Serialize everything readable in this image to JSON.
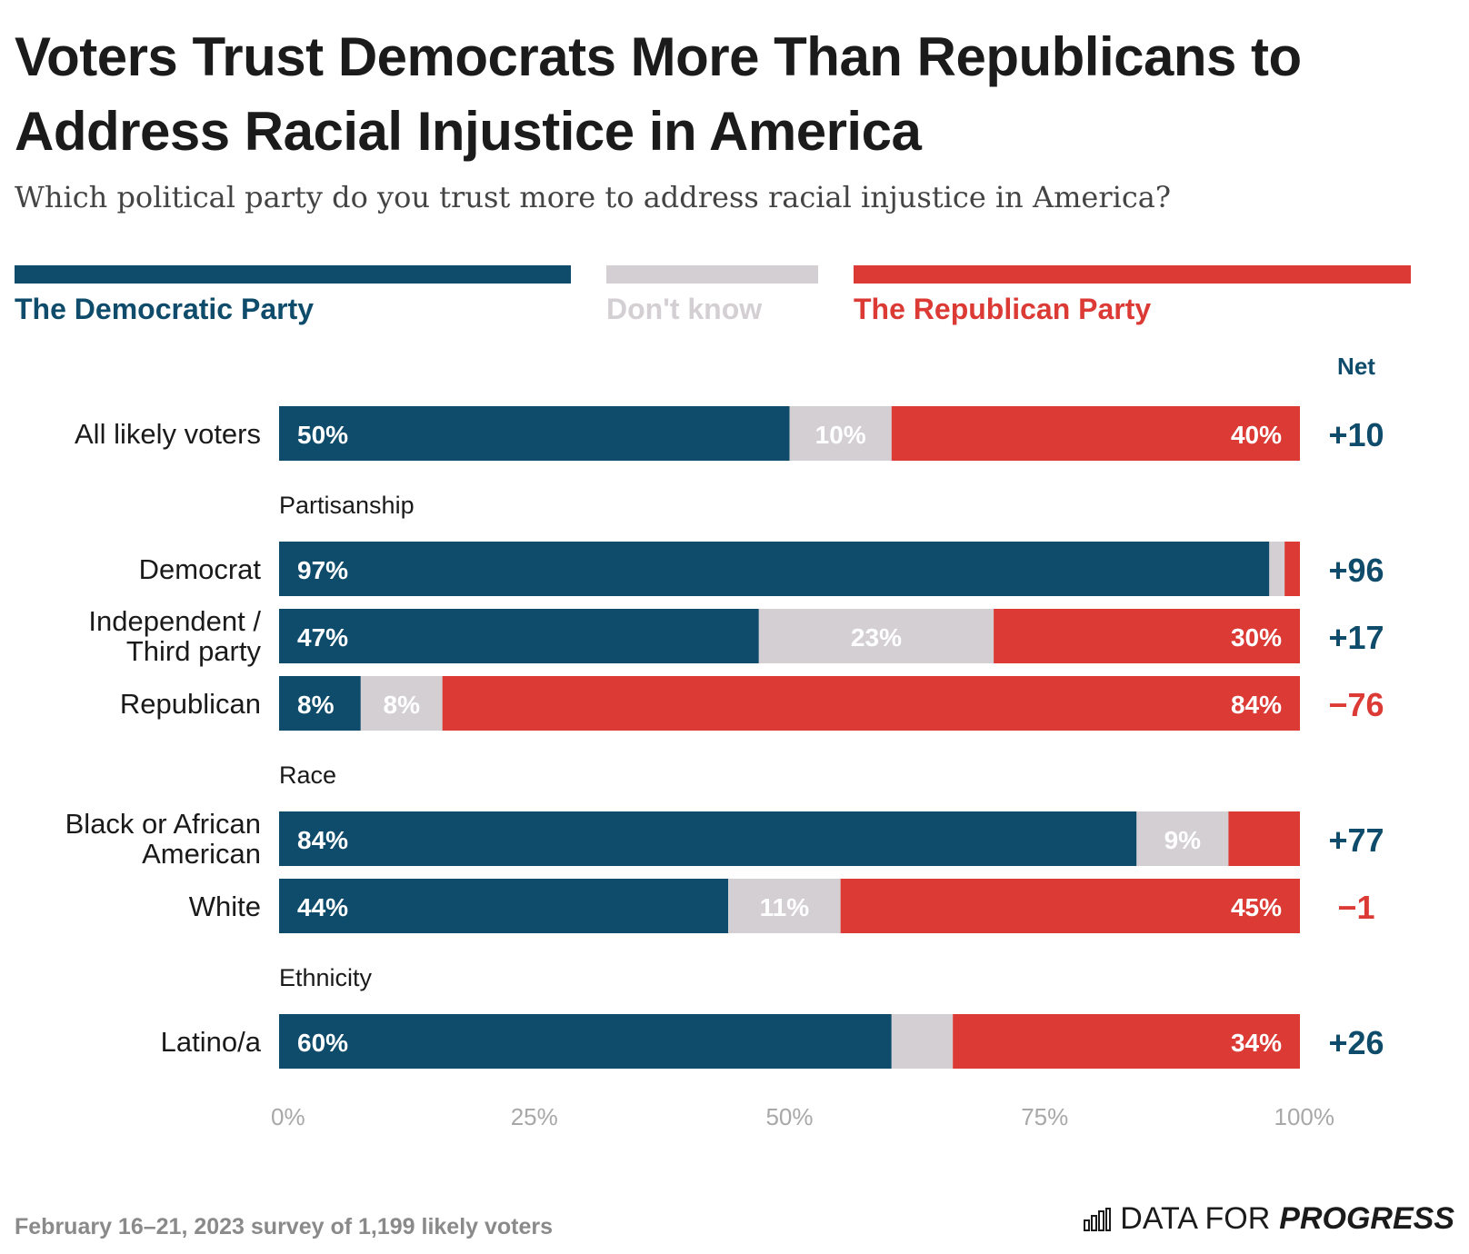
{
  "title": "Voters Trust Democrats More Than Republicans to Address Racial Injustice in America",
  "subtitle": "Which political party do you trust more to address racial injustice in America?",
  "legend": [
    {
      "label": "The Democratic Party",
      "color": "#0f4c6b"
    },
    {
      "label": "Don't know",
      "color": "#d3cfd3"
    },
    {
      "label": "The Republican Party",
      "color": "#db3a35"
    }
  ],
  "net_header": "Net",
  "footer": "February 16–21, 2023 survey of 1,199 likely voters",
  "brand": {
    "prefix": "DATA FOR",
    "strong": "PROGRESS"
  },
  "chart_data": {
    "type": "bar",
    "orientation": "horizontal-stacked-100",
    "series": [
      {
        "name": "The Democratic Party",
        "color": "#0f4c6b"
      },
      {
        "name": "Don't know",
        "color": "#d3cfd3"
      },
      {
        "name": "The Republican Party",
        "color": "#db3a35"
      }
    ],
    "groups": [
      {
        "label": "",
        "rows": [
          {
            "category": "All likely voters",
            "values": [
              50,
              10,
              40
            ],
            "labels": [
              "50%",
              "10%",
              "40%"
            ],
            "net": "+10"
          }
        ]
      },
      {
        "label": "Partisanship",
        "rows": [
          {
            "category": "Democrat",
            "values": [
              97,
              1.5,
              1.5
            ],
            "labels": [
              "97%",
              "",
              ""
            ],
            "net": "+96"
          },
          {
            "category": "Independent / Third party",
            "lines": [
              "Independent /",
              "Third party"
            ],
            "values": [
              47,
              23,
              30
            ],
            "labels": [
              "47%",
              "23%",
              "30%"
            ],
            "net": "+17"
          },
          {
            "category": "Republican",
            "values": [
              8,
              8,
              84
            ],
            "labels": [
              "8%",
              "8%",
              "84%"
            ],
            "net": "−76"
          }
        ]
      },
      {
        "label": "Race",
        "rows": [
          {
            "category": "Black or African American",
            "lines": [
              "Black or African",
              "American"
            ],
            "values": [
              84,
              9,
              7
            ],
            "labels": [
              "84%",
              "9%",
              ""
            ],
            "net": "+77"
          },
          {
            "category": "White",
            "values": [
              44,
              11,
              45
            ],
            "labels": [
              "44%",
              "11%",
              "45%"
            ],
            "net": "−1"
          }
        ]
      },
      {
        "label": "Ethnicity",
        "rows": [
          {
            "category": "Latino/a",
            "values": [
              60,
              6,
              34
            ],
            "labels": [
              "60%",
              "",
              "34%"
            ],
            "net": "+26"
          }
        ]
      }
    ],
    "x_ticks": [
      "0%",
      "25%",
      "50%",
      "75%",
      "100%"
    ],
    "xlim": [
      0,
      100
    ],
    "net_colors": {
      "positive": "#0f4c6b",
      "negative": "#db3a35"
    }
  }
}
